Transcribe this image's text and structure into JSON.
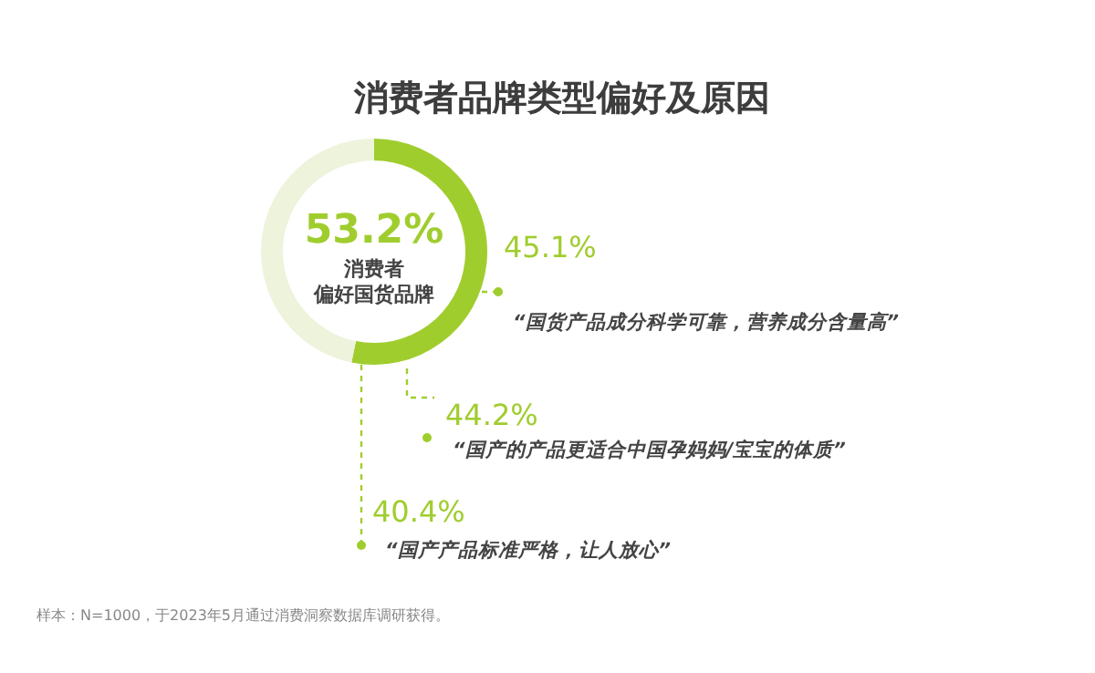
{
  "chart_data": {
    "type": "donut",
    "title": "消费者品牌类型偏好及原因",
    "categories": [
      "消费者偏好国货品牌",
      null
    ],
    "values": [
      53.2,
      46.8
    ],
    "colors": [
      "#a0cd2e",
      "#eef3dc"
    ],
    "value_labels": [
      "53.2%",
      null
    ],
    "annotations": [
      "45.1%",
      "“国货产品成分科学可靠，营养成分含量高”",
      "44.2%",
      "“国产的产品更适合中国孕妈妈/宝宝的体质”",
      "40.4%",
      "“国产产品标准严格，让人放心”",
      "样本：N=1000，于2023年5月通过消费洞察数据库调研获得。"
    ]
  }
}
